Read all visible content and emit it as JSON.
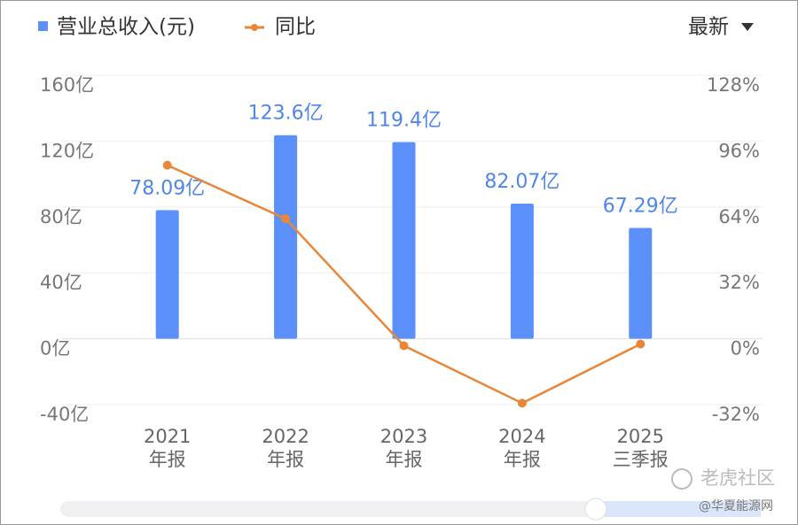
{
  "chart_data": {
    "type": "bar-line",
    "legend": {
      "bar": "营业总收入(元)",
      "line": "同比"
    },
    "filter": "最新",
    "categories": [
      [
        "2021",
        "年报"
      ],
      [
        "2022",
        "年报"
      ],
      [
        "2023",
        "年报"
      ],
      [
        "2024",
        "年报"
      ],
      [
        "2025",
        "三季报"
      ]
    ],
    "series": [
      {
        "name": "营业总收入(元)",
        "type": "bar",
        "color": "#5b8ff9",
        "values": [
          78.09,
          123.6,
          119.4,
          82.07,
          67.29
        ],
        "value_labels": [
          "78.09亿",
          "123.6亿",
          "119.4亿",
          "82.07亿",
          "67.29亿"
        ]
      },
      {
        "name": "同比",
        "type": "line",
        "axis": "y2",
        "color": "#e8873a",
        "values": [
          84.3,
          58.3,
          -3.4,
          -31.3,
          -2.6
        ]
      }
    ],
    "ylim": [
      -40,
      160
    ],
    "yticks": [
      {
        "value": -40,
        "label": "-40亿"
      },
      {
        "value": 0,
        "label": "0亿"
      },
      {
        "value": 40,
        "label": "40亿"
      },
      {
        "value": 80,
        "label": "80亿"
      },
      {
        "value": 120,
        "label": "120亿"
      },
      {
        "value": 160,
        "label": "160亿"
      }
    ],
    "y2lim": [
      -32,
      128
    ],
    "y2ticks": [
      {
        "value": -32,
        "label": "-32%"
      },
      {
        "value": 0,
        "label": "0%"
      },
      {
        "value": 32,
        "label": "32%"
      },
      {
        "value": 64,
        "label": "64%"
      },
      {
        "value": 96,
        "label": "96%"
      },
      {
        "value": 128,
        "label": "128%"
      }
    ],
    "grid": true,
    "watermark": [
      "老虎社区",
      "@华夏能源网"
    ]
  }
}
